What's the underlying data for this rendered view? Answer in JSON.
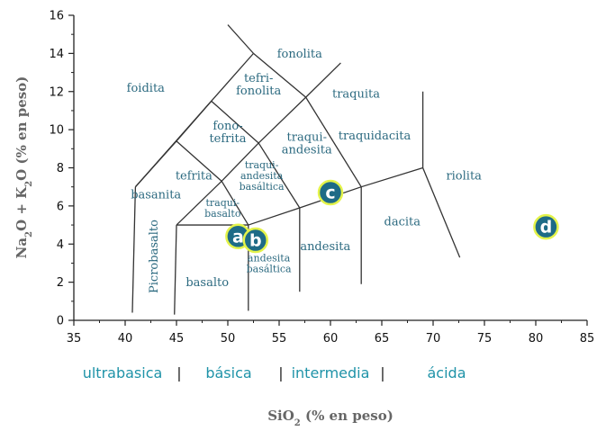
{
  "chart_data": {
    "type": "scatter",
    "title": "",
    "xlabel": "SiO",
    "xlabel_sub": "2",
    "xlabel_rest": " (% en peso)",
    "ylabel_parts": [
      "Na",
      "2",
      "O + K",
      "2",
      "O  (% en peso)"
    ],
    "xlim": [
      35,
      85
    ],
    "ylim": [
      0,
      16
    ],
    "x_ticks": [
      35,
      40,
      45,
      50,
      55,
      60,
      65,
      70,
      75,
      80,
      85
    ],
    "y_ticks": [
      0,
      2,
      4,
      6,
      8,
      10,
      12,
      14,
      16
    ],
    "grid": false,
    "boundaries": [
      [
        [
          41,
          7
        ],
        [
          52.5,
          14
        ]
      ],
      [
        [
          52.5,
          14
        ],
        [
          57.6,
          11.7
        ]
      ],
      [
        [
          50,
          15.5
        ],
        [
          52.5,
          14
        ]
      ],
      [
        [
          57.6,
          11.7
        ],
        [
          63,
          7
        ]
      ],
      [
        [
          57.6,
          11.7
        ],
        [
          61,
          13.5
        ]
      ],
      [
        [
          45,
          9.4
        ],
        [
          49.4,
          7.3
        ]
      ],
      [
        [
          45,
          9.4
        ],
        [
          48.4,
          11.5
        ]
      ],
      [
        [
          49.4,
          7.3
        ],
        [
          52,
          5
        ]
      ],
      [
        [
          49.4,
          7.3
        ],
        [
          53,
          9.3
        ]
      ],
      [
        [
          53,
          9.3
        ],
        [
          57.6,
          11.7
        ]
      ],
      [
        [
          53,
          9.3
        ],
        [
          57,
          5.9
        ]
      ],
      [
        [
          48.4,
          11.5
        ],
        [
          53,
          9.3
        ]
      ],
      [
        [
          41,
          7
        ],
        [
          45,
          9.4
        ]
      ],
      [
        [
          45,
          5
        ],
        [
          49.4,
          7.3
        ]
      ],
      [
        [
          52,
          5
        ],
        [
          57,
          5.9
        ]
      ],
      [
        [
          57,
          5.9
        ],
        [
          63,
          7
        ]
      ],
      [
        [
          63,
          7
        ],
        [
          69,
          8
        ]
      ],
      [
        [
          69,
          8
        ],
        [
          69,
          12
        ]
      ],
      [
        [
          69,
          8
        ],
        [
          72.6,
          3.3
        ]
      ],
      [
        [
          45,
          5
        ],
        [
          52,
          5
        ]
      ],
      [
        [
          41,
          7
        ],
        [
          40.7,
          0.4
        ]
      ],
      [
        [
          45,
          5
        ],
        [
          44.8,
          0.3
        ]
      ],
      [
        [
          52,
          5
        ],
        [
          52,
          0.5
        ]
      ],
      [
        [
          57,
          5.9
        ],
        [
          57,
          1.5
        ]
      ],
      [
        [
          63,
          7
        ],
        [
          63,
          1.9
        ]
      ]
    ],
    "fields": [
      {
        "lines": [
          "fonolita"
        ],
        "x": 57,
        "y": 14
      },
      {
        "lines": [
          "foidita"
        ],
        "x": 42,
        "y": 12.2
      },
      {
        "lines": [
          "tefri-",
          "fonolita"
        ],
        "x": 53,
        "y": 12.4
      },
      {
        "lines": [
          "traquita"
        ],
        "x": 62.5,
        "y": 11.9
      },
      {
        "lines": [
          "fono-",
          "tefrita"
        ],
        "x": 50,
        "y": 9.9
      },
      {
        "lines": [
          "traqui-",
          "andesita"
        ],
        "x": 57.7,
        "y": 9.3
      },
      {
        "lines": [
          "traquidacita"
        ],
        "x": 64.3,
        "y": 9.7
      },
      {
        "lines": [
          "tefrita"
        ],
        "x": 46.7,
        "y": 7.6
      },
      {
        "lines": [
          "basanita"
        ],
        "x": 43,
        "y": 6.6
      },
      {
        "lines": [
          "traqui-",
          "andesita",
          "basáltica"
        ],
        "x": 53.3,
        "y": 7.6
      },
      {
        "lines": [
          "riolita"
        ],
        "x": 73,
        "y": 7.6
      },
      {
        "lines": [
          "traqui-",
          "basalto"
        ],
        "x": 49.5,
        "y": 5.9
      },
      {
        "lines": [
          "dacita"
        ],
        "x": 67,
        "y": 5.2
      },
      {
        "lines": [
          "andesita"
        ],
        "x": 59.5,
        "y": 3.9
      },
      {
        "lines": [
          "andesita",
          "basáltica"
        ],
        "x": 54,
        "y": 3
      },
      {
        "lines": [
          "basalto"
        ],
        "x": 48,
        "y": 2
      }
    ],
    "picrobasalto_label": "Picrobasalto",
    "points": [
      {
        "label": "a",
        "x": 51,
        "y": 4.4
      },
      {
        "label": "b",
        "x": 52.7,
        "y": 4.2
      },
      {
        "label": "c",
        "x": 60,
        "y": 6.7
      },
      {
        "label": "d",
        "x": 81,
        "y": 4.9
      }
    ],
    "colors": {
      "point_fill": "#1e6b86",
      "point_ring": "#e4f34a",
      "field_text": "#2c6a80",
      "group_text": "#1f93a8",
      "lines": "#333333"
    }
  },
  "groups": {
    "ultrabasica": "ultrabasica",
    "basica": "básica",
    "intermedia": "intermedia",
    "acida": "ácida",
    "separator": "|"
  }
}
